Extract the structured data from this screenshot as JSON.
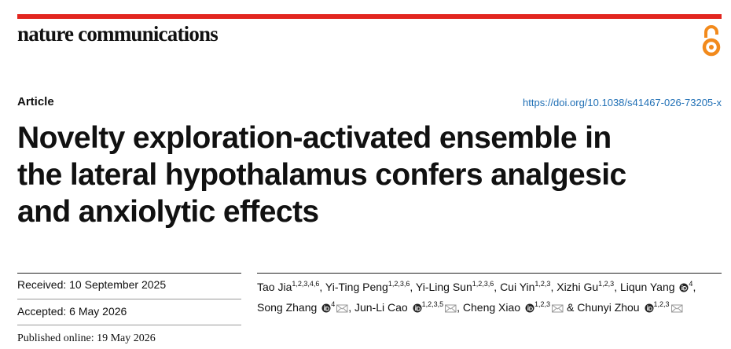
{
  "header": {
    "journal": "nature communications",
    "article_type": "Article",
    "doi": "https://doi.org/10.1038/s41467-026-73205-x"
  },
  "title_lines": [
    "Novelty exploration-activated ensemble in",
    "the lateral hypothalamus confers analgesic",
    "and anxiolytic effects"
  ],
  "dates": {
    "received": "Received: 10 September 2025",
    "accepted": "Accepted: 6 May 2026",
    "published": "Published online: 19 May 2026"
  },
  "authors": [
    {
      "name": "Tao Jia",
      "affiliations": "1,2,3,4,6",
      "orcid": false,
      "email": false,
      "suffix": ","
    },
    {
      "name": "Yi-Ting Peng",
      "affiliations": "1,2,3,6",
      "orcid": false,
      "email": false,
      "suffix": ","
    },
    {
      "name": "Yi-Ling Sun",
      "affiliations": "1,2,3,6",
      "orcid": false,
      "email": false,
      "suffix": ","
    },
    {
      "name": "Cui Yin",
      "affiliations": "1,2,3",
      "orcid": false,
      "email": false,
      "suffix": ","
    },
    {
      "name": "Xizhi Gu",
      "affiliations": "1,2,3",
      "orcid": false,
      "email": false,
      "suffix": ","
    },
    {
      "name": "Liqun Yang",
      "affiliations": "4",
      "orcid": true,
      "email": false,
      "suffix": ","
    },
    {
      "name": "Song Zhang",
      "affiliations": "4",
      "orcid": true,
      "email": true,
      "suffix": ","
    },
    {
      "name": "Jun-Li Cao",
      "affiliations": "1,2,3,5",
      "orcid": true,
      "email": true,
      "suffix": ","
    },
    {
      "name": "Cheng Xiao",
      "affiliations": "1,2,3",
      "orcid": true,
      "email": true,
      "suffix": "&"
    },
    {
      "name": "Chunyi Zhou",
      "affiliations": "1,2,3",
      "orcid": true,
      "email": true
    }
  ]
}
